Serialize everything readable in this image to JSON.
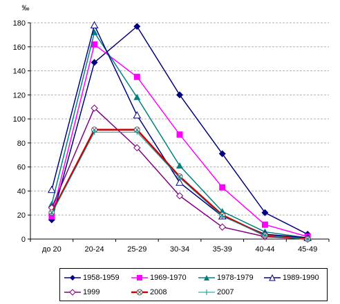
{
  "chart_data": {
    "type": "line",
    "unit_label": "‰",
    "categories": [
      "до 20",
      "20-24",
      "25-29",
      "30-34",
      "35-39",
      "40-44",
      "45-49"
    ],
    "ylim": [
      0,
      180
    ],
    "yticks": [
      0,
      20,
      40,
      60,
      80,
      100,
      120,
      140,
      160,
      180
    ],
    "grid": "horizontal dashed",
    "legend_position": "bottom",
    "series": [
      {
        "name": "1958-1959",
        "color": "#000080",
        "marker": "diamond",
        "values": [
          16,
          147,
          177,
          120,
          71,
          22,
          4
        ]
      },
      {
        "name": "1969-1970",
        "color": "#ff00ff",
        "marker": "square",
        "values": [
          19,
          162,
          135,
          87,
          43,
          12,
          2
        ]
      },
      {
        "name": "1978-1979",
        "color": "#008080",
        "marker": "triangle",
        "values": [
          29,
          172,
          118,
          61,
          23,
          6,
          1
        ]
      },
      {
        "name": "1989-1990",
        "color": "#000080",
        "marker": "triangle-open",
        "values": [
          41,
          178,
          103,
          47,
          19,
          4,
          1
        ]
      },
      {
        "name": "1999",
        "color": "#800080",
        "marker": "diamond-open",
        "values": [
          26,
          109,
          76,
          36,
          10,
          2,
          0
        ]
      },
      {
        "name": "2008",
        "color": "#cc0000",
        "marker": "circle-cross",
        "values": [
          22,
          91,
          91,
          52,
          20,
          3,
          0
        ]
      },
      {
        "name": "2007",
        "color": "#009999",
        "marker": "plus",
        "values": [
          21,
          89,
          89,
          51,
          19,
          3,
          0
        ]
      }
    ]
  }
}
